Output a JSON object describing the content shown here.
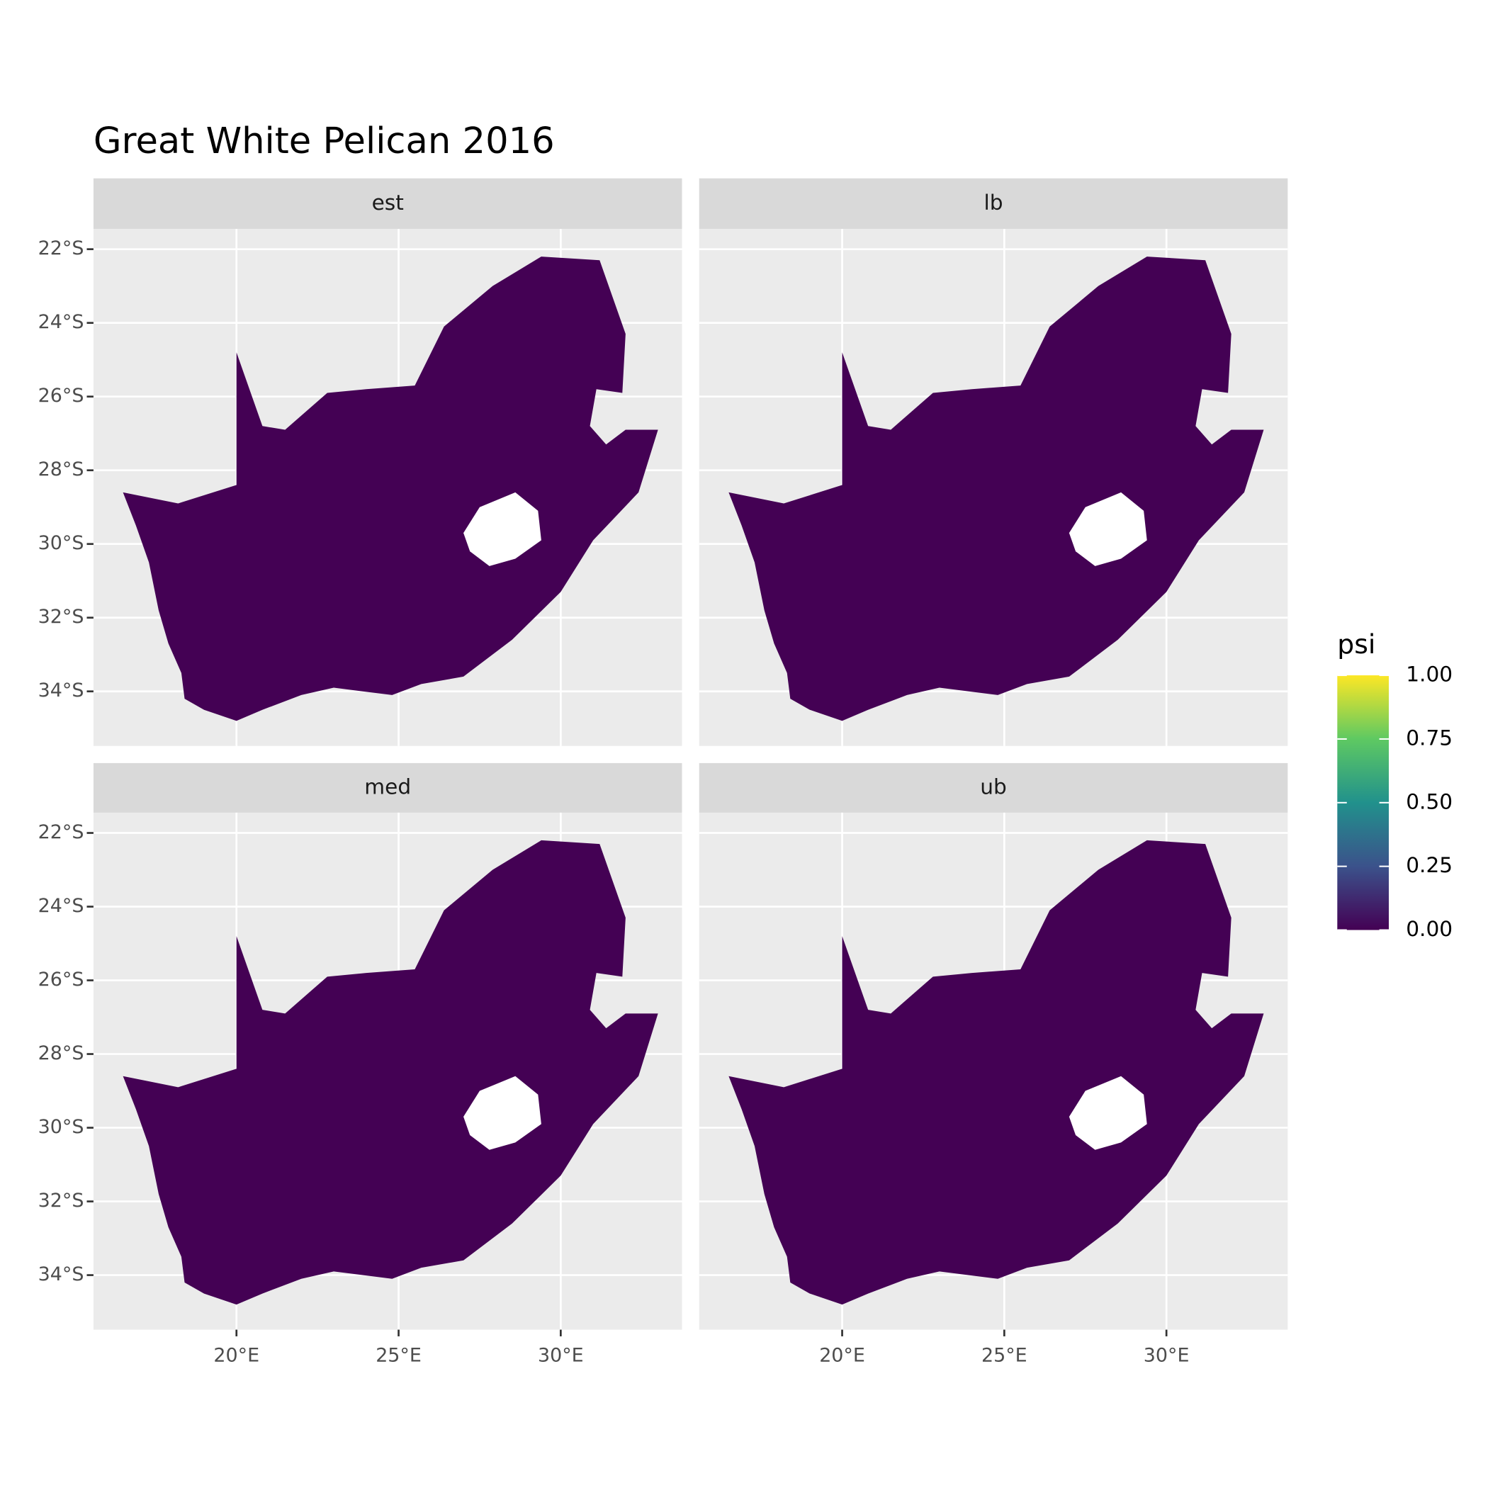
{
  "chart_data": {
    "type": "map",
    "title": "Great White Pelican 2016",
    "facets": [
      "est",
      "lb",
      "med",
      "ub"
    ],
    "xlim": [
      15.59,
      33.74
    ],
    "ylim": [
      -35.48,
      -21.45
    ],
    "xticks": [
      {
        "value": 20,
        "label": "20°E"
      },
      {
        "value": 25,
        "label": "25°E"
      },
      {
        "value": 30,
        "label": "30°E"
      }
    ],
    "yticks": [
      {
        "value": -22,
        "label": "22°S"
      },
      {
        "value": -24,
        "label": "24°S"
      },
      {
        "value": -26,
        "label": "26°S"
      },
      {
        "value": -28,
        "label": "28°S"
      },
      {
        "value": -30,
        "label": "30°S"
      },
      {
        "value": -32,
        "label": "32°S"
      },
      {
        "value": -34,
        "label": "34°S"
      }
    ],
    "grid": true,
    "fill": "#440154",
    "na_color": "#ffffff",
    "outline": {
      "lon": [
        16.5,
        18.2,
        20.0,
        20.0,
        20.8,
        21.5,
        22.8,
        24.0,
        25.5,
        26.4,
        27.9,
        29.4,
        31.2,
        32.0,
        31.9,
        31.1,
        30.9,
        31.4,
        32.0,
        33.0,
        32.4,
        31.0,
        30.0,
        28.5,
        27.0,
        25.7,
        24.8,
        23.0,
        22.0,
        20.8,
        20.0,
        19.0,
        18.4,
        18.3,
        17.9,
        17.6,
        17.3,
        16.9
      ],
      "lat": [
        -28.6,
        -28.9,
        -28.4,
        -24.8,
        -26.8,
        -26.9,
        -25.9,
        -25.8,
        -25.7,
        -24.1,
        -23.0,
        -22.2,
        -22.3,
        -24.3,
        -25.9,
        -25.8,
        -26.8,
        -27.3,
        -26.9,
        -26.9,
        -28.6,
        -29.9,
        -31.3,
        -32.6,
        -33.6,
        -33.8,
        -34.1,
        -33.9,
        -34.1,
        -34.5,
        -34.8,
        -34.5,
        -34.2,
        -33.5,
        -32.7,
        -31.8,
        -30.5,
        -29.5
      ]
    },
    "hole": {
      "lon": [
        27.0,
        27.5,
        28.6,
        29.3,
        29.4,
        28.6,
        27.8,
        27.2
      ],
      "lat": [
        -29.7,
        -29.0,
        -28.6,
        -29.1,
        -29.9,
        -30.4,
        -30.6,
        -30.2
      ]
    },
    "legend": {
      "title": "psi",
      "lim": [
        0,
        1
      ],
      "colors": [
        "#440154",
        "#3b528b",
        "#21918c",
        "#5ec962",
        "#fde725"
      ],
      "ticks": [
        {
          "value": 0,
          "label": "0.00"
        },
        {
          "value": 0.25,
          "label": "0.25"
        },
        {
          "value": 0.5,
          "label": "0.50"
        },
        {
          "value": 0.75,
          "label": "0.75"
        },
        {
          "value": 1,
          "label": "1.00"
        }
      ]
    }
  }
}
